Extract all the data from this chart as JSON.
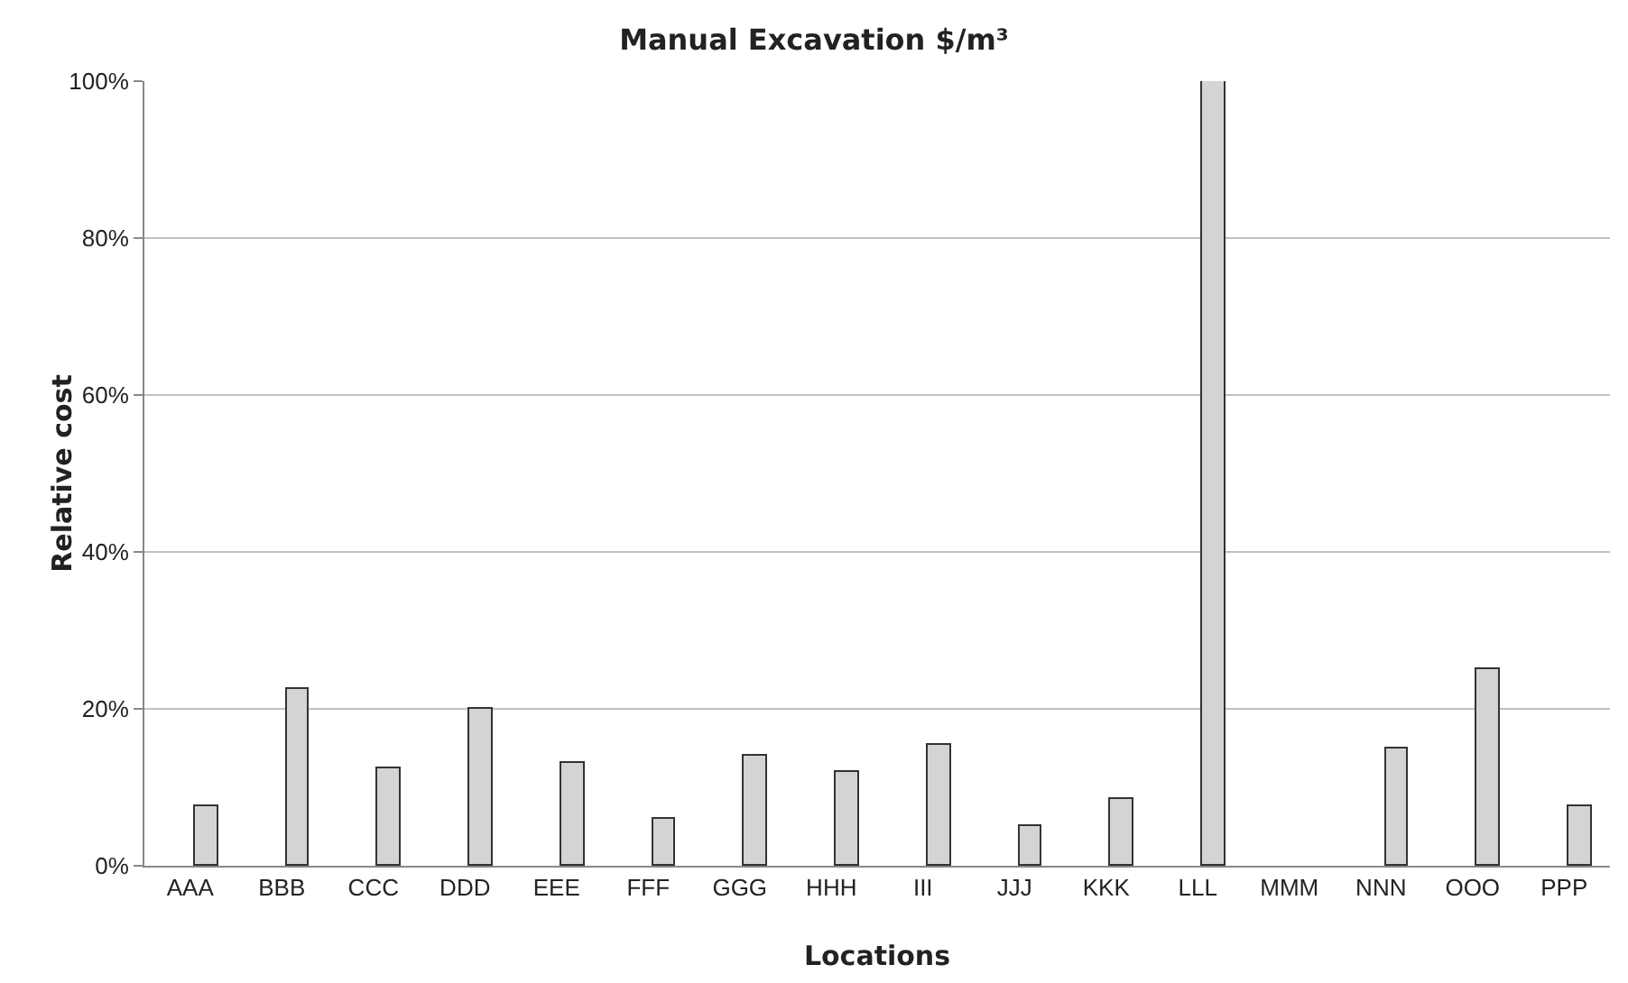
{
  "chart_data": {
    "type": "bar",
    "title": "Manual Excavation $/m³",
    "xlabel": "Locations",
    "ylabel": "Relative cost",
    "categories": [
      "AAA",
      "BBB",
      "CCC",
      "DDD",
      "EEE",
      "FFF",
      "GGG",
      "HHH",
      "III",
      "JJJ",
      "KKK",
      "LLL",
      "MMM",
      "NNN",
      "OOO",
      "PPP"
    ],
    "values": [
      7.5,
      22.5,
      12.5,
      20,
      13,
      6,
      14,
      12,
      15.5,
      5,
      8.5,
      100,
      null,
      15,
      25,
      7.5
    ],
    "color": "#d4d4d4",
    "ylim": [
      0,
      100
    ],
    "yticks": [
      {
        "value": 0,
        "label": "0%"
      },
      {
        "value": 20,
        "label": "20%"
      },
      {
        "value": 40,
        "label": "40%"
      },
      {
        "value": 60,
        "label": "60%"
      },
      {
        "value": 80,
        "label": "80%"
      },
      {
        "value": 100,
        "label": "100%"
      }
    ],
    "grid": "y"
  }
}
